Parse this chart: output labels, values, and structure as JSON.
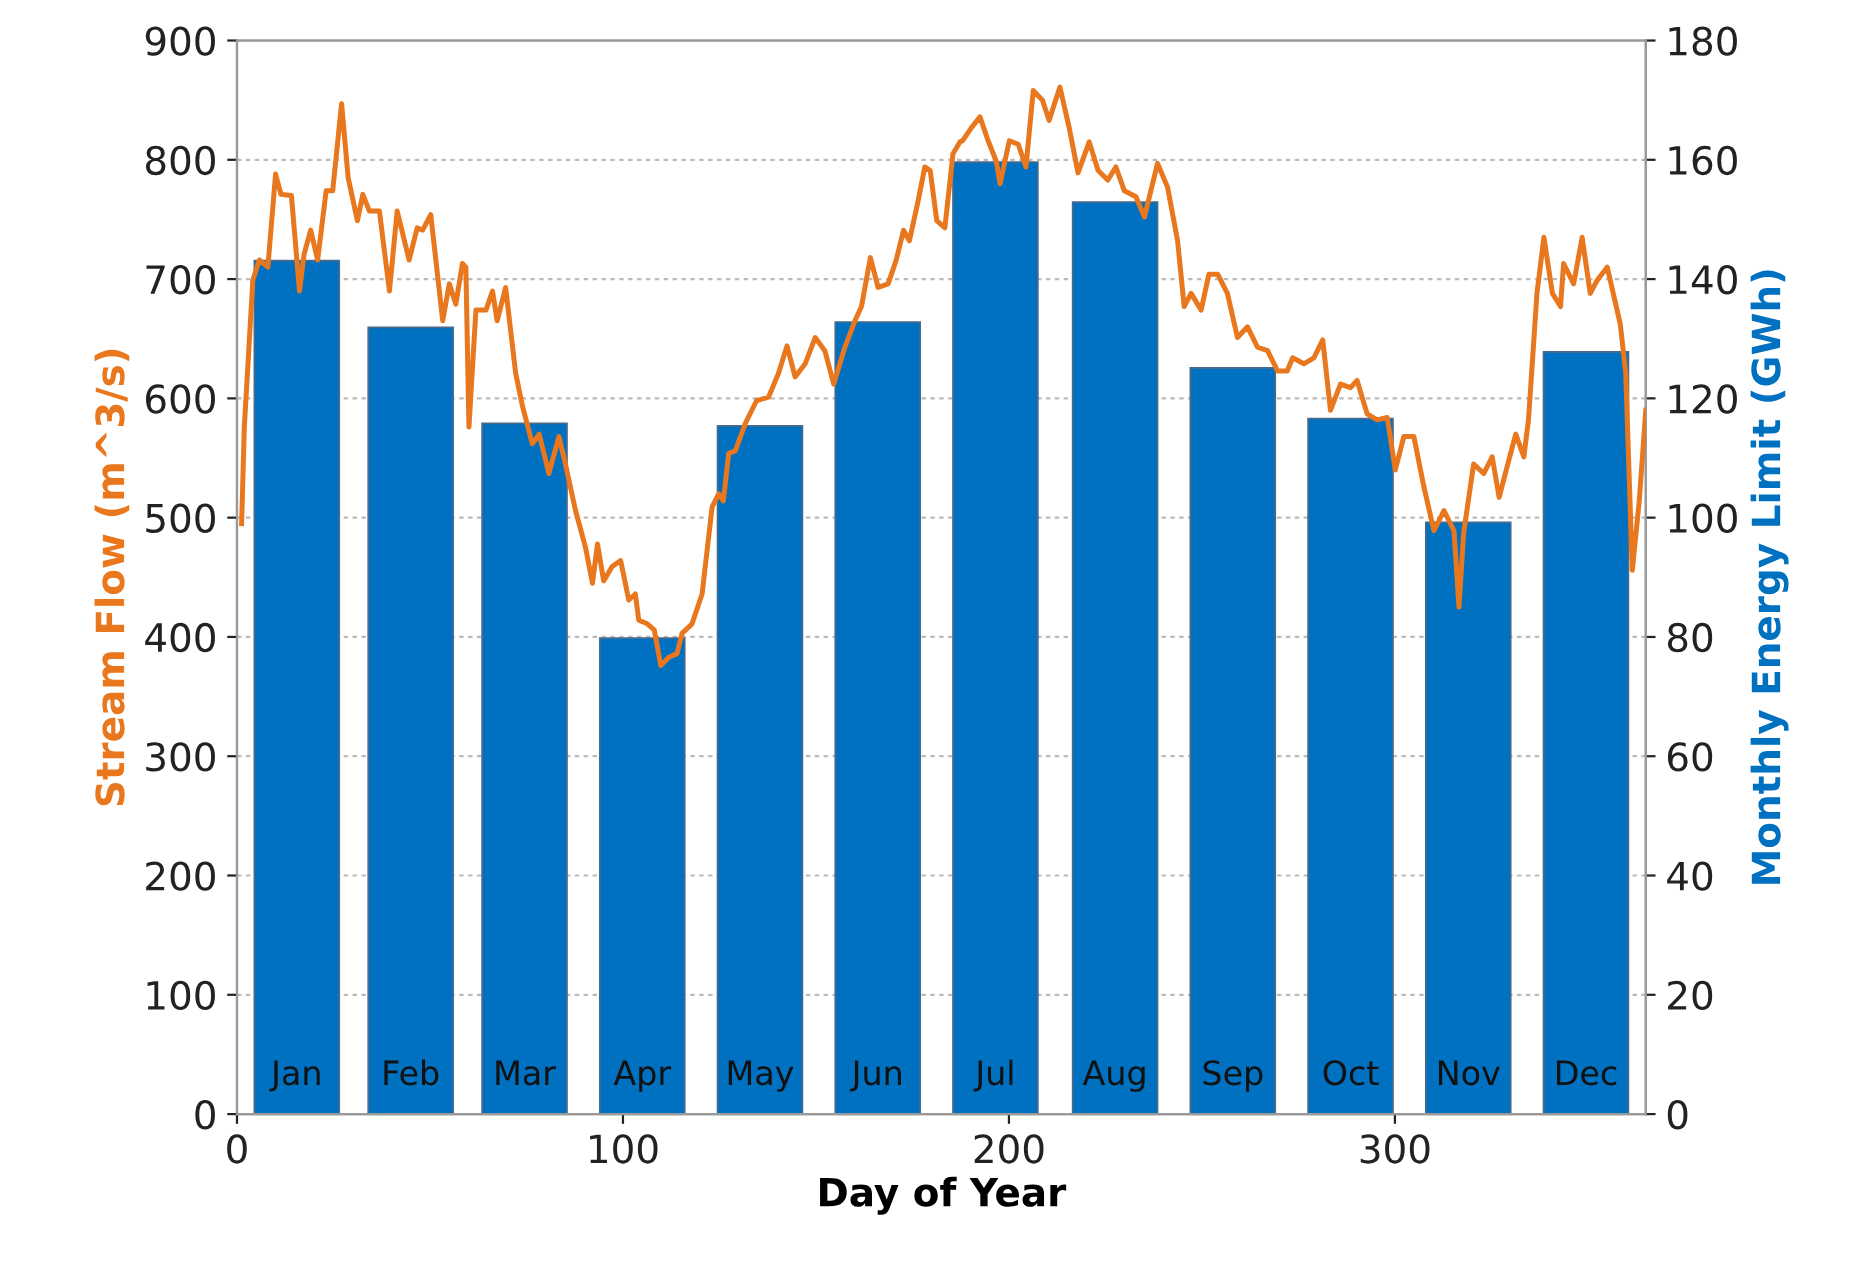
{
  "chart_data": {
    "type": "line",
    "xlabel": "Day of Year",
    "ylabel": "Stream Flow (m^3/s)",
    "y2label": "Monthly Energy Limit (GWh)",
    "xlim": [
      0,
      365
    ],
    "xticks": [
      0,
      100,
      200,
      300
    ],
    "ylim": [
      0,
      900
    ],
    "yticks": [
      0,
      100,
      200,
      300,
      400,
      500,
      600,
      700,
      800,
      900
    ],
    "y2lim": [
      0,
      180
    ],
    "y2ticks": [
      0,
      20,
      40,
      60,
      80,
      100,
      120,
      140,
      160,
      180
    ],
    "grid": "y",
    "legend": false,
    "series": [
      {
        "type": "bar",
        "axis": "y2",
        "color": "#0070c0",
        "x": [
          15.5,
          45,
          74.5,
          105,
          135.5,
          166,
          196.5,
          227.5,
          258,
          288.5,
          319,
          349.5
        ],
        "values": [
          143.1,
          131.9,
          115.8,
          79.8,
          115.4,
          132.8,
          159.6,
          152.9,
          125.1,
          116.6,
          99.2,
          127.8
        ]
      },
      {
        "axis": "y",
        "color": "#e8771e",
        "x": [
          1.2,
          1.9,
          4.1,
          5.8,
          8.0,
          10.0,
          11.4,
          14.1,
          16.2,
          17.4,
          19.1,
          20.9,
          23.1,
          24.8,
          27.1,
          28.8,
          31.2,
          32.6,
          34.3,
          36.9,
          39.5,
          41.5,
          44.6,
          46.7,
          48.1,
          50.2,
          53.3,
          55.0,
          56.7,
          58.4,
          59.3,
          60.1,
          61.9,
          64.5,
          66.2,
          67.4,
          69.6,
          72.2,
          74.0,
          76.5,
          78.3,
          80.8,
          83.4,
          85.1,
          87.7,
          90.3,
          92.1,
          93.4,
          95.0,
          97.2,
          99.4,
          101.5,
          103.2,
          104.1,
          106.3,
          108.1,
          109.8,
          111.9,
          114.0,
          115.3,
          117.9,
          120.5,
          123.1,
          124.8,
          126.0,
          127.4,
          129.1,
          131.7,
          134.6,
          137.7,
          140.3,
          142.5,
          144.6,
          147.2,
          149.8,
          152.3,
          154.6,
          157.5,
          160.1,
          161.8,
          164.1,
          166.1,
          168.7,
          170.8,
          172.7,
          174.2,
          176.5,
          178.2,
          179.6,
          181.3,
          183.4,
          185.5,
          187.3,
          188.0,
          190.3,
          192.5,
          194.6,
          196.7,
          197.7,
          200.1,
          202.4,
          204.4,
          206.3,
          208.7,
          210.4,
          213.2,
          215.6,
          217.9,
          220.8,
          223.1,
          225.6,
          227.7,
          229.9,
          232.9,
          235.1,
          238.5,
          241.1,
          243.7,
          245.4,
          247.2,
          249.8,
          251.8,
          254.1,
          256.6,
          259.2,
          261.8,
          264.4,
          267.0,
          269.6,
          272.1,
          273.5,
          276.4,
          279.0,
          281.3,
          283.3,
          285.9,
          288.5,
          290.2,
          292.8,
          295.4,
          298.0,
          300.1,
          302.3,
          304.9,
          307.5,
          310.1,
          312.7,
          315.3,
          316.6,
          317.8,
          320.4,
          323.0,
          325.2,
          327.0,
          329.0,
          331.3,
          333.4,
          334.6,
          336.8,
          338.6,
          340.8,
          342.9,
          343.7,
          346.3,
          348.5,
          350.6,
          352.4,
          355.0,
          358.4,
          359.8,
          361.5,
          363.3,
          365
        ],
        "values": [
          495,
          576,
          699,
          716,
          710,
          788,
          771,
          770,
          690,
          721,
          741,
          716,
          774,
          774,
          847,
          785,
          749,
          771,
          757,
          757,
          690,
          757,
          716,
          743,
          741,
          754,
          665,
          696,
          679,
          713,
          710,
          576,
          674,
          674,
          690,
          665,
          693,
          621,
          593,
          562,
          570,
          537,
          568,
          545,
          506,
          475,
          445,
          478,
          447,
          459,
          464,
          431,
          436,
          414,
          411,
          406,
          376,
          383,
          386,
          403,
          411,
          436,
          509,
          520,
          514,
          554,
          556,
          579,
          598,
          601,
          621,
          644,
          618,
          629,
          651,
          640,
          612,
          643,
          665,
          677,
          718,
          693,
          696,
          716,
          741,
          732,
          766,
          794,
          791,
          749,
          743,
          805,
          815,
          816,
          827,
          836,
          816,
          799,
          780,
          816,
          813,
          794,
          858,
          850,
          833,
          861,
          827,
          789,
          815,
          791,
          783,
          794,
          774,
          769,
          752,
          797,
          777,
          732,
          677,
          688,
          674,
          704,
          704,
          688,
          651,
          660,
          643,
          640,
          623,
          623,
          634,
          629,
          634,
          649,
          590,
          612,
          609,
          615,
          587,
          582,
          584,
          540,
          568,
          568,
          526,
          489,
          506,
          489,
          425,
          487,
          545,
          537,
          551,
          517,
          542,
          570,
          551,
          582,
          688,
          735,
          688,
          677,
          713,
          696,
          735,
          688,
          699,
          710,
          662,
          621,
          456,
          514,
          590
        ]
      }
    ],
    "annotations": [
      {
        "text": "Jan",
        "x": 15.5,
        "y": 0
      },
      {
        "text": "Feb",
        "x": 45,
        "y": 0
      },
      {
        "text": "Mar",
        "x": 74.5,
        "y": 0
      },
      {
        "text": "Apr",
        "x": 105,
        "y": 0
      },
      {
        "text": "May",
        "x": 135.5,
        "y": 0
      },
      {
        "text": "Jun",
        "x": 166,
        "y": 0
      },
      {
        "text": "Jul",
        "x": 196.5,
        "y": 0
      },
      {
        "text": "Aug",
        "x": 227.5,
        "y": 0
      },
      {
        "text": "Sep",
        "x": 258,
        "y": 0
      },
      {
        "text": "Oct",
        "x": 288.5,
        "y": 0
      },
      {
        "text": "Nov",
        "x": 319,
        "y": 0
      },
      {
        "text": "Dec",
        "x": 349.5,
        "y": 0
      }
    ]
  }
}
